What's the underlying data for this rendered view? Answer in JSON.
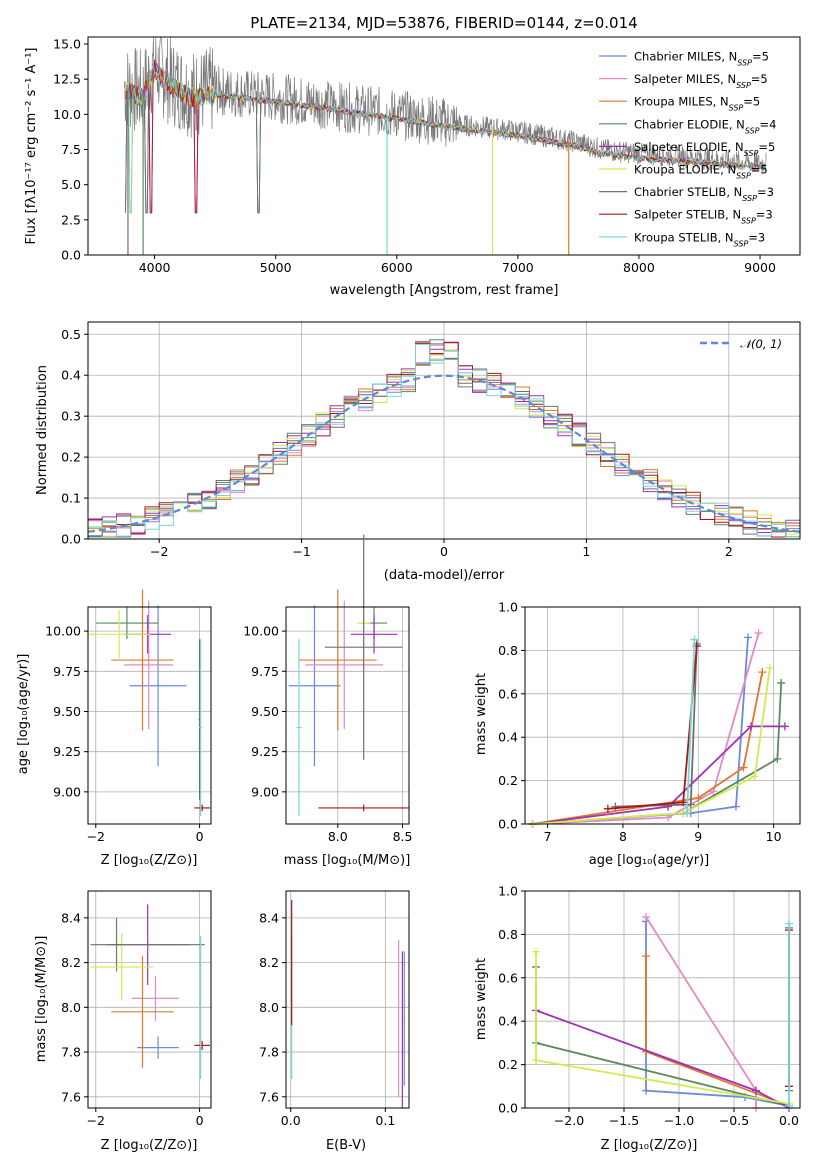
{
  "colors": [
    "#6a8ae0",
    "#e48ac6",
    "#e0782a",
    "#5a8a5e",
    "#a22fb8",
    "#d0ec4e",
    "#707070",
    "#a81818",
    "#7ad6d6"
  ],
  "chart_data": [
    {
      "id": "spectrum",
      "type": "line",
      "title": "PLATE=2134, MJD=53876, FIBERID=0144, z=0.014",
      "xlabel": "wavelength [Angstrom, rest frame]",
      "ylabel": "Flux [fλ10⁻¹⁷ erg cm⁻² s⁻¹ A⁻¹]",
      "xlim": [
        3450,
        9330
      ],
      "ylim": [
        0,
        15.5
      ],
      "xticks": [
        4000,
        5000,
        6000,
        7000,
        8000,
        9000
      ],
      "yticks": [
        "0.0",
        "2.5",
        "5.0",
        "7.5",
        "10.0",
        "12.5",
        "15.0"
      ],
      "legend_position": "top-right",
      "legend": [
        {
          "name": "Chabrier MILES, N_SSP=5",
          "color": "#6a8ae0"
        },
        {
          "name": "Salpeter MILES, N_SSP=5",
          "color": "#e48ac6"
        },
        {
          "name": "Kroupa MILES, N_SSP=5",
          "color": "#e0782a"
        },
        {
          "name": "Chabrier ELODIE, N_SSP=4",
          "color": "#5a8a5e"
        },
        {
          "name": "Salpeter ELODIE, N_SSP=5",
          "color": "#a22fb8"
        },
        {
          "name": "Kroupa ELODIE, N_SSP=5",
          "color": "#d0ec4e"
        },
        {
          "name": "Chabrier STELIB, N_SSP=3",
          "color": "#707070"
        },
        {
          "name": "Salpeter STELIB, N_SSP=3",
          "color": "#a81818"
        },
        {
          "name": "Kroupa STELIB, N_SSP=3",
          "color": "#7ad6d6"
        }
      ],
      "data_envelope": [
        [
          3750,
          12
        ],
        [
          3900,
          11.5
        ],
        [
          4000,
          13.5
        ],
        [
          4100,
          12.5
        ],
        [
          4300,
          11.5
        ],
        [
          4500,
          11.7
        ],
        [
          5000,
          11.2
        ],
        [
          5500,
          10.6
        ],
        [
          6000,
          10.0
        ],
        [
          6500,
          9.3
        ],
        [
          7000,
          8.8
        ],
        [
          7500,
          8.0
        ],
        [
          7700,
          7.5
        ],
        [
          8000,
          7.2
        ],
        [
          8500,
          6.9
        ],
        [
          9000,
          6.5
        ],
        [
          9050,
          6.6
        ]
      ]
    },
    {
      "id": "residuals",
      "type": "histogram",
      "xlabel": "(data-model)/error",
      "ylabel": "Normed distribution",
      "xlim": [
        -2.5,
        2.5
      ],
      "ylim": [
        0,
        0.53
      ],
      "xticks": [
        "−2",
        "−1",
        "0",
        "1",
        "2"
      ],
      "yticks": [
        "0.0",
        "0.1",
        "0.2",
        "0.3",
        "0.4",
        "0.5"
      ],
      "bin_width": 0.1,
      "legend": "𝒩(0, 1)",
      "legend_position": "top-right",
      "reference": "normal(0,1)"
    },
    {
      "id": "age_vs_Z",
      "type": "errorbar",
      "xlabel": "Z [log₁₀(Z/Z⊙)]",
      "ylabel": "age  [log₁₀(age/yr)]",
      "xlim": [
        -2.15,
        0.22
      ],
      "ylim": [
        8.8,
        10.15
      ],
      "xticks": [
        -2,
        0
      ],
      "yticks": [
        "9.00",
        "9.25",
        "9.50",
        "9.75",
        "10.00"
      ],
      "points": [
        {
          "x": -0.8,
          "y": 9.66,
          "xerr": 0.55,
          "yerr": 0.5,
          "c": 0
        },
        {
          "x": -0.98,
          "y": 9.79,
          "xerr": 0.47,
          "yerr": 0.4,
          "c": 1
        },
        {
          "x": -1.1,
          "y": 9.82,
          "xerr": 0.6,
          "yerr": 0.44,
          "c": 2
        },
        {
          "x": -1.4,
          "y": 10.05,
          "xerr": 0.6,
          "yerr": 0.1,
          "c": 3
        },
        {
          "x": -1.0,
          "y": 9.98,
          "xerr": 0.45,
          "yerr": 0.12,
          "c": 4
        },
        {
          "x": -1.55,
          "y": 9.98,
          "xerr": 0.6,
          "yerr": 0.15,
          "c": 5
        },
        {
          "x": 0.0,
          "y": 9.45,
          "xerr": 0.02,
          "yerr": 0.5,
          "c": 6
        },
        {
          "x": 0.05,
          "y": 8.9,
          "xerr": 0.15,
          "yerr": 0.02,
          "c": 7
        },
        {
          "x": 0.02,
          "y": 9.4,
          "xerr": 0.03,
          "yerr": 0.55,
          "c": 8
        }
      ]
    },
    {
      "id": "age_vs_mass",
      "type": "errorbar",
      "xlabel": "mass [log₁₀(M/M⊙)]",
      "xlim": [
        7.6,
        8.55
      ],
      "ylim": [
        8.8,
        10.15
      ],
      "xticks": [
        "8.0",
        "8.5"
      ],
      "yticks": [
        "9.00",
        "9.25",
        "9.50",
        "9.75",
        "10.00"
      ],
      "points": [
        {
          "x": 7.82,
          "y": 9.66,
          "xerr": 0.2,
          "yerr": 0.5,
          "c": 0
        },
        {
          "x": 8.05,
          "y": 9.79,
          "xerr": 0.3,
          "yerr": 0.4,
          "c": 1
        },
        {
          "x": 8.0,
          "y": 9.82,
          "xerr": 0.3,
          "yerr": 0.44,
          "c": 2
        },
        {
          "x": 8.28,
          "y": 10.05,
          "xerr": 0.1,
          "yerr": 0.1,
          "c": 3
        },
        {
          "x": 8.28,
          "y": 9.98,
          "xerr": 0.18,
          "yerr": 0.12,
          "c": 4
        },
        {
          "x": 8.2,
          "y": 10.05,
          "xerr": 0.05,
          "yerr": 0.2,
          "c": 5
        },
        {
          "x": 8.2,
          "y": 9.9,
          "xerr": 0.3,
          "yerr": 0.7,
          "c": 6
        },
        {
          "x": 8.2,
          "y": 8.9,
          "xerr": 0.35,
          "yerr": 0.02,
          "c": 7
        },
        {
          "x": 7.7,
          "y": 9.4,
          "xerr": 0.02,
          "yerr": 0.55,
          "c": 8
        }
      ]
    },
    {
      "id": "weight_vs_age",
      "type": "line",
      "xlabel": "age  [log₁₀(age/yr)]",
      "ylabel": "mass weight",
      "xlim": [
        6.7,
        10.35
      ],
      "ylim": [
        0,
        1
      ],
      "xticks": [
        7,
        8,
        9,
        10
      ],
      "yticks": [
        "0.0",
        "0.2",
        "0.4",
        "0.6",
        "0.8",
        "1.0"
      ],
      "series": [
        {
          "c": 0,
          "x": [
            6.8,
            8.9,
            9.5,
            9.66
          ],
          "y": [
            0.0,
            0.05,
            0.08,
            0.86
          ]
        },
        {
          "c": 1,
          "x": [
            6.8,
            8.6,
            9.2,
            9.8
          ],
          "y": [
            0.0,
            0.03,
            0.15,
            0.88
          ]
        },
        {
          "c": 2,
          "x": [
            6.8,
            9.0,
            9.6,
            9.85
          ],
          "y": [
            0.0,
            0.12,
            0.26,
            0.7
          ]
        },
        {
          "c": 3,
          "x": [
            6.8,
            8.8,
            10.05,
            10.1
          ],
          "y": [
            0.0,
            0.05,
            0.3,
            0.65
          ]
        },
        {
          "c": 4,
          "x": [
            6.8,
            8.6,
            9.7,
            10.15
          ],
          "y": [
            0.0,
            0.08,
            0.45,
            0.45
          ]
        },
        {
          "c": 5,
          "x": [
            6.8,
            8.8,
            9.75,
            9.95
          ],
          "y": [
            0.0,
            0.05,
            0.22,
            0.72
          ]
        },
        {
          "c": 6,
          "x": [
            7.9,
            8.9,
            8.98
          ],
          "y": [
            0.08,
            0.09,
            0.83
          ]
        },
        {
          "c": 7,
          "x": [
            7.8,
            8.8,
            8.98
          ],
          "y": [
            0.07,
            0.1,
            0.82
          ]
        },
        {
          "c": 8,
          "x": [
            8.85,
            8.95
          ],
          "y": [
            0.05,
            0.85
          ]
        }
      ]
    },
    {
      "id": "mass_vs_Z",
      "type": "errorbar",
      "xlabel": "Z [log₁₀(Z/Z⊙)]",
      "ylabel": "mass [log₁₀(M/M⊙)]",
      "xlim": [
        -2.15,
        0.22
      ],
      "ylim": [
        7.55,
        8.52
      ],
      "xticks": [
        -2,
        0
      ],
      "yticks": [
        "7.6",
        "7.8",
        "8.0",
        "8.2",
        "8.4"
      ],
      "points": [
        {
          "x": -0.8,
          "y": 7.82,
          "xerr": 0.4,
          "yerr": 0.05,
          "c": 0
        },
        {
          "x": -0.85,
          "y": 8.04,
          "xerr": 0.45,
          "yerr": 0.1,
          "c": 1
        },
        {
          "x": -1.1,
          "y": 7.98,
          "xerr": 0.6,
          "yerr": 0.25,
          "c": 2
        },
        {
          "x": -1.6,
          "y": 8.28,
          "xerr": 0.1,
          "yerr": 0.12,
          "c": 3
        },
        {
          "x": -1.0,
          "y": 8.28,
          "xerr": 0.8,
          "yerr": 0.18,
          "c": 4
        },
        {
          "x": -1.5,
          "y": 8.18,
          "xerr": 0.6,
          "yerr": 0.15,
          "c": 5
        },
        {
          "x": -1.0,
          "y": 8.28,
          "xerr": 1.1,
          "yerr": 0.02,
          "c": 6
        },
        {
          "x": 0.05,
          "y": 7.83,
          "xerr": 0.15,
          "yerr": 0.02,
          "c": 7
        },
        {
          "x": 0.02,
          "y": 8.0,
          "xerr": 0.03,
          "yerr": 0.32,
          "c": 8
        }
      ]
    },
    {
      "id": "mass_vs_ebv",
      "type": "errorbar",
      "xlabel": "E(B-V)",
      "xlim": [
        -0.005,
        0.125
      ],
      "ylim": [
        7.55,
        8.52
      ],
      "xticks": [
        "0.0",
        "0.1"
      ],
      "yticks": [
        "7.6",
        "7.8",
        "8.0",
        "8.2",
        "8.4"
      ],
      "points": [
        {
          "x": 0.001,
          "y": 8.0,
          "xerr": 0.0005,
          "yerr": 0.32,
          "c": 8
        },
        {
          "x": 0.001,
          "y": 8.2,
          "xerr": 0.0005,
          "yerr": 0.28,
          "c": 7
        },
        {
          "x": 0.114,
          "y": 7.95,
          "xerr": 0.0005,
          "yerr": 0.35,
          "c": 1
        },
        {
          "x": 0.118,
          "y": 7.9,
          "xerr": 0.0005,
          "yerr": 0.35,
          "c": 4
        },
        {
          "x": 0.12,
          "y": 7.95,
          "xerr": 0.0005,
          "yerr": 0.3,
          "c": 0
        }
      ]
    },
    {
      "id": "weight_vs_Z",
      "type": "line",
      "xlabel": "Z [log₁₀(Z/Z⊙)]",
      "ylabel": "mass weight",
      "xlim": [
        -2.4,
        0.1
      ],
      "ylim": [
        0,
        1
      ],
      "xticks": [
        "−2.0",
        "−1.5",
        "−1.0",
        "−0.5",
        "0.0"
      ],
      "yticks": [
        "0.0",
        "0.2",
        "0.4",
        "0.6",
        "0.8",
        "1.0"
      ],
      "series": [
        {
          "c": 0,
          "x": [
            -1.3,
            -1.3,
            -0.4,
            0.0
          ],
          "y": [
            0.86,
            0.08,
            0.05,
            0.01
          ]
        },
        {
          "c": 1,
          "x": [
            -1.3,
            -0.3,
            -0.3
          ],
          "y": [
            0.88,
            0.08,
            0.0
          ]
        },
        {
          "c": 2,
          "x": [
            -1.3,
            -1.3,
            0.0
          ],
          "y": [
            0.7,
            0.26,
            0.01
          ]
        },
        {
          "c": 3,
          "x": [
            -2.3,
            -2.3,
            0.0
          ],
          "y": [
            0.65,
            0.3,
            0.01
          ]
        },
        {
          "c": 4,
          "x": [
            -2.3,
            -0.3,
            0.0
          ],
          "y": [
            0.45,
            0.08,
            0.0
          ]
        },
        {
          "c": 5,
          "x": [
            -2.3,
            -2.3,
            0.0
          ],
          "y": [
            0.72,
            0.22,
            0.02
          ]
        },
        {
          "c": 6,
          "x": [
            0.0,
            0.0
          ],
          "y": [
            0.83,
            0.08
          ]
        },
        {
          "c": 7,
          "x": [
            0.0,
            0.0
          ],
          "y": [
            0.82,
            0.1
          ]
        },
        {
          "c": 8,
          "x": [
            0.0,
            0.0
          ],
          "y": [
            0.85,
            0.01
          ]
        }
      ]
    }
  ]
}
